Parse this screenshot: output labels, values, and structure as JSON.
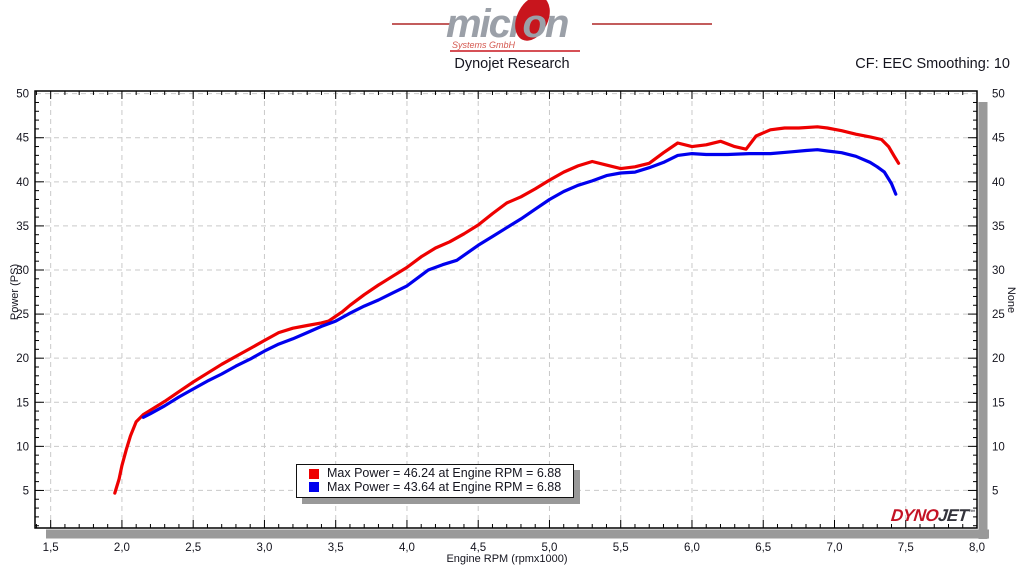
{
  "header": {
    "logo": {
      "brand_left": "micr",
      "brand_o": "o",
      "brand_right": "n",
      "subtitle": "Systems GmbH"
    },
    "title": "Dynojet Research",
    "correction_info": "CF: EEC Smoothing: 10"
  },
  "legend": {
    "items": [
      {
        "color": "#ee0000",
        "label": "Max Power = 46.24 at Engine RPM = 6.88"
      },
      {
        "color": "#0000ee",
        "label": "Max Power = 43.64 at Engine RPM = 6.88"
      }
    ]
  },
  "watermark": {
    "dyno": "DYNO",
    "jet": "JET",
    "tm": "™"
  },
  "chart_data": {
    "type": "line",
    "title": "Dynojet Research",
    "xlabel": "Engine RPM (rpmx1000)",
    "ylabel_left": "Power (PS)",
    "ylabel_right": "None",
    "xlim": [
      1.39,
      8.0
    ],
    "ylim": [
      0.74,
      50.3
    ],
    "x_major_ticks": [
      1.5,
      2.0,
      2.5,
      3.0,
      3.5,
      4.0,
      4.5,
      5.0,
      5.5,
      6.0,
      6.5,
      7.0,
      7.5,
      8.0
    ],
    "x_tick_labels": [
      "1,5",
      "2,0",
      "2,5",
      "3,0",
      "3,5",
      "4,0",
      "4,5",
      "5,0",
      "5,5",
      "6,0",
      "6,5",
      "7,0",
      "7,5",
      "8,0"
    ],
    "x_minor_step": 0.1,
    "y_major_ticks": [
      5,
      10,
      15,
      20,
      25,
      30,
      35,
      40,
      45,
      50
    ],
    "y_minor_step": 1,
    "grid": "dashed",
    "series": [
      {
        "name": "power-red",
        "color": "#ee0000",
        "max_power": 46.24,
        "max_rpm": 6.88,
        "points": [
          [
            1.95,
            4.7
          ],
          [
            1.98,
            6.3
          ],
          [
            2.0,
            7.8
          ],
          [
            2.03,
            9.6
          ],
          [
            2.06,
            11.2
          ],
          [
            2.1,
            12.8
          ],
          [
            2.15,
            13.6
          ],
          [
            2.2,
            14.1
          ],
          [
            2.3,
            15.1
          ],
          [
            2.4,
            16.2
          ],
          [
            2.5,
            17.3
          ],
          [
            2.6,
            18.3
          ],
          [
            2.7,
            19.3
          ],
          [
            2.8,
            20.2
          ],
          [
            2.9,
            21.1
          ],
          [
            3.0,
            22.0
          ],
          [
            3.1,
            22.9
          ],
          [
            3.2,
            23.4
          ],
          [
            3.3,
            23.7
          ],
          [
            3.4,
            24.0
          ],
          [
            3.45,
            24.2
          ],
          [
            3.55,
            25.3
          ],
          [
            3.6,
            26.0
          ],
          [
            3.7,
            27.2
          ],
          [
            3.8,
            28.3
          ],
          [
            3.9,
            29.3
          ],
          [
            4.0,
            30.3
          ],
          [
            4.1,
            31.5
          ],
          [
            4.2,
            32.5
          ],
          [
            4.3,
            33.2
          ],
          [
            4.4,
            34.1
          ],
          [
            4.5,
            35.1
          ],
          [
            4.6,
            36.4
          ],
          [
            4.7,
            37.6
          ],
          [
            4.8,
            38.3
          ],
          [
            4.9,
            39.2
          ],
          [
            5.0,
            40.2
          ],
          [
            5.1,
            41.1
          ],
          [
            5.2,
            41.8
          ],
          [
            5.3,
            42.3
          ],
          [
            5.4,
            41.9
          ],
          [
            5.5,
            41.5
          ],
          [
            5.6,
            41.7
          ],
          [
            5.7,
            42.1
          ],
          [
            5.8,
            43.3
          ],
          [
            5.9,
            44.4
          ],
          [
            6.0,
            44.0
          ],
          [
            6.1,
            44.2
          ],
          [
            6.2,
            44.6
          ],
          [
            6.3,
            44.0
          ],
          [
            6.38,
            43.7
          ],
          [
            6.45,
            45.2
          ],
          [
            6.55,
            45.9
          ],
          [
            6.65,
            46.1
          ],
          [
            6.75,
            46.1
          ],
          [
            6.88,
            46.24
          ],
          [
            6.95,
            46.1
          ],
          [
            7.05,
            45.8
          ],
          [
            7.15,
            45.4
          ],
          [
            7.25,
            45.1
          ],
          [
            7.33,
            44.8
          ],
          [
            7.38,
            44.0
          ],
          [
            7.42,
            42.9
          ],
          [
            7.45,
            42.1
          ]
        ]
      },
      {
        "name": "power-blue",
        "color": "#0000ee",
        "max_power": 43.64,
        "max_rpm": 6.88,
        "points": [
          [
            2.15,
            13.3
          ],
          [
            2.2,
            13.7
          ],
          [
            2.3,
            14.6
          ],
          [
            2.4,
            15.6
          ],
          [
            2.5,
            16.5
          ],
          [
            2.6,
            17.4
          ],
          [
            2.7,
            18.2
          ],
          [
            2.8,
            19.1
          ],
          [
            2.9,
            19.9
          ],
          [
            3.0,
            20.8
          ],
          [
            3.1,
            21.6
          ],
          [
            3.2,
            22.2
          ],
          [
            3.3,
            22.9
          ],
          [
            3.4,
            23.6
          ],
          [
            3.5,
            24.2
          ],
          [
            3.6,
            25.1
          ],
          [
            3.7,
            25.9
          ],
          [
            3.8,
            26.6
          ],
          [
            3.9,
            27.4
          ],
          [
            4.0,
            28.2
          ],
          [
            4.1,
            29.4
          ],
          [
            4.15,
            30.0
          ],
          [
            4.25,
            30.6
          ],
          [
            4.35,
            31.1
          ],
          [
            4.5,
            32.8
          ],
          [
            4.6,
            33.8
          ],
          [
            4.7,
            34.8
          ],
          [
            4.8,
            35.8
          ],
          [
            4.9,
            36.9
          ],
          [
            5.0,
            38.0
          ],
          [
            5.1,
            38.9
          ],
          [
            5.2,
            39.6
          ],
          [
            5.3,
            40.1
          ],
          [
            5.4,
            40.7
          ],
          [
            5.5,
            41.0
          ],
          [
            5.6,
            41.1
          ],
          [
            5.7,
            41.6
          ],
          [
            5.8,
            42.2
          ],
          [
            5.9,
            43.0
          ],
          [
            6.0,
            43.2
          ],
          [
            6.1,
            43.1
          ],
          [
            6.25,
            43.1
          ],
          [
            6.4,
            43.2
          ],
          [
            6.55,
            43.2
          ],
          [
            6.7,
            43.4
          ],
          [
            6.8,
            43.55
          ],
          [
            6.88,
            43.64
          ],
          [
            6.95,
            43.5
          ],
          [
            7.05,
            43.3
          ],
          [
            7.15,
            42.9
          ],
          [
            7.25,
            42.2
          ],
          [
            7.3,
            41.7
          ],
          [
            7.35,
            41.1
          ],
          [
            7.4,
            39.8
          ],
          [
            7.43,
            38.6
          ]
        ]
      }
    ]
  }
}
